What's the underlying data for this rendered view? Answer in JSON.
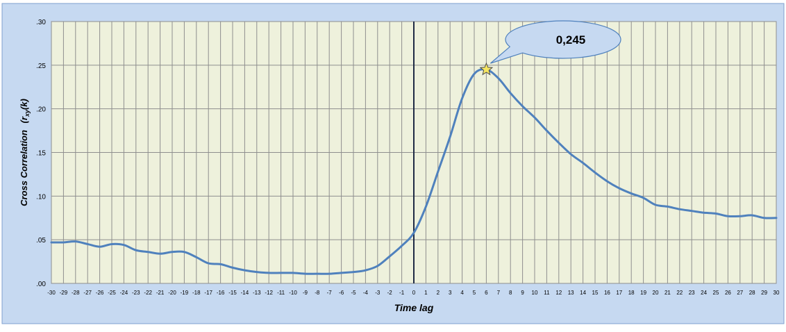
{
  "chart_data": {
    "type": "line",
    "xlabel": "Time lag",
    "ylabel": "Cross Correlation",
    "ylabel_math": "(r",
    "ylabel_sub": "xy",
    "ylabel_tail": "(k)",
    "xlim": [
      -30,
      30
    ],
    "ylim": [
      0,
      0.3
    ],
    "grid": true,
    "x_ticks": [
      "-30",
      "-29",
      "-28",
      "-27",
      "-26",
      "-25",
      "-24",
      "-23",
      "-22",
      "-21",
      "-20",
      "-19",
      "-18",
      "-17",
      "-16",
      "-15",
      "-14",
      "-13",
      "-12",
      "-11",
      "-10",
      "-9",
      "-8",
      "-7",
      "-6",
      "-5",
      "-4",
      "-3",
      "-2",
      "-1",
      "0",
      "1",
      "2",
      "3",
      "4",
      "5",
      "6",
      "7",
      "8",
      "9",
      "10",
      "11",
      "12",
      "13",
      "14",
      "15",
      "16",
      "17",
      "18",
      "19",
      "20",
      "21",
      "22",
      "23",
      "24",
      "25",
      "26",
      "27",
      "28",
      "29",
      "30"
    ],
    "y_ticks": [
      {
        "value": 0.0,
        "label": ".00"
      },
      {
        "value": 0.05,
        "label": ".05"
      },
      {
        "value": 0.1,
        "label": ".10"
      },
      {
        "value": 0.15,
        "label": ".15"
      },
      {
        "value": 0.2,
        "label": ".20"
      },
      {
        "value": 0.25,
        "label": ".25"
      },
      {
        "value": 0.3,
        "label": ".30"
      }
    ],
    "series": [
      {
        "x": [
          -30,
          -29,
          -28,
          -27,
          -26,
          -25,
          -24,
          -23,
          -22,
          -21,
          -20,
          -19,
          -18,
          -17,
          -16,
          -15,
          -14,
          -13,
          -12,
          -11,
          -10,
          -9,
          -8,
          -7,
          -6,
          -5,
          -4,
          -3,
          -2,
          -1,
          0,
          1,
          2,
          3,
          4,
          5,
          6,
          7,
          8,
          9,
          10,
          11,
          12,
          13,
          14,
          15,
          16,
          17,
          18,
          19,
          20,
          21,
          22,
          23,
          24,
          25,
          26,
          27,
          28,
          29,
          30
        ],
        "y": [
          0.047,
          0.047,
          0.048,
          0.045,
          0.042,
          0.045,
          0.044,
          0.038,
          0.036,
          0.034,
          0.036,
          0.036,
          0.03,
          0.023,
          0.022,
          0.018,
          0.015,
          0.013,
          0.012,
          0.012,
          0.012,
          0.011,
          0.011,
          0.011,
          0.012,
          0.013,
          0.015,
          0.02,
          0.031,
          0.043,
          0.058,
          0.088,
          0.128,
          0.168,
          0.212,
          0.24,
          0.245,
          0.235,
          0.218,
          0.203,
          0.19,
          0.175,
          0.161,
          0.148,
          0.138,
          0.127,
          0.117,
          0.109,
          0.103,
          0.098,
          0.09,
          0.088,
          0.085,
          0.083,
          0.081,
          0.08,
          0.077,
          0.077,
          0.078,
          0.075,
          0.075
        ],
        "color": "#4f81bd"
      }
    ],
    "vertical_line_at": 0,
    "annotation": {
      "text": "0,245",
      "x": 6,
      "y": 0.245,
      "marker": "star"
    }
  }
}
